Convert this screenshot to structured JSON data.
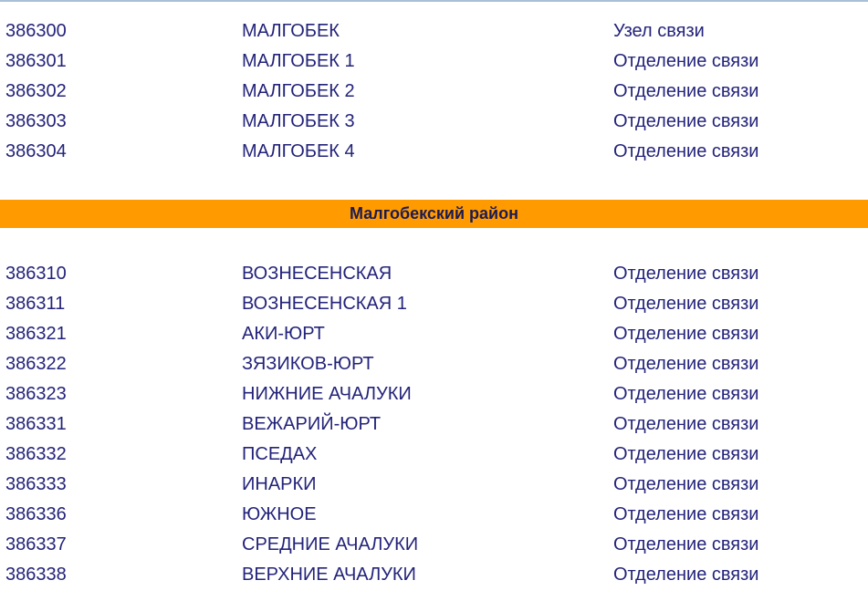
{
  "groups": [
    {
      "rows": [
        {
          "code": "386300",
          "name": "МАЛГОБЕК",
          "type": "Узел связи"
        },
        {
          "code": "386301",
          "name": "МАЛГОБЕК 1",
          "type": "Отделение связи"
        },
        {
          "code": "386302",
          "name": "МАЛГОБЕК 2",
          "type": "Отделение связи"
        },
        {
          "code": "386303",
          "name": "МАЛГОБЕК 3",
          "type": "Отделение связи"
        },
        {
          "code": "386304",
          "name": "МАЛГОБЕК 4",
          "type": "Отделение связи"
        }
      ]
    },
    {
      "header": "Малгобекский район",
      "rows": [
        {
          "code": "386310",
          "name": "ВОЗНЕСЕНСКАЯ",
          "type": "Отделение связи"
        },
        {
          "code": "386311",
          "name": "ВОЗНЕСЕНСКАЯ 1",
          "type": "Отделение связи"
        },
        {
          "code": "386321",
          "name": "АКИ-ЮРТ",
          "type": "Отделение связи"
        },
        {
          "code": "386322",
          "name": "ЗЯЗИКОВ-ЮРТ",
          "type": "Отделение связи"
        },
        {
          "code": "386323",
          "name": "НИЖНИЕ АЧАЛУКИ",
          "type": "Отделение связи"
        },
        {
          "code": "386331",
          "name": "ВЕЖАРИЙ-ЮРТ",
          "type": "Отделение связи"
        },
        {
          "code": "386332",
          "name": "ПСЕДАХ",
          "type": "Отделение связи"
        },
        {
          "code": "386333",
          "name": "ИНАРКИ",
          "type": "Отделение связи"
        },
        {
          "code": "386336",
          "name": "ЮЖНОЕ",
          "type": "Отделение связи"
        },
        {
          "code": "386337",
          "name": "СРЕДНИЕ АЧАЛУКИ",
          "type": "Отделение связи"
        },
        {
          "code": "386338",
          "name": "ВЕРХНИЕ АЧАЛУКИ",
          "type": "Отделение связи"
        }
      ]
    }
  ],
  "colors": {
    "header_bar": "#ff9a00",
    "text": "#23237a"
  }
}
